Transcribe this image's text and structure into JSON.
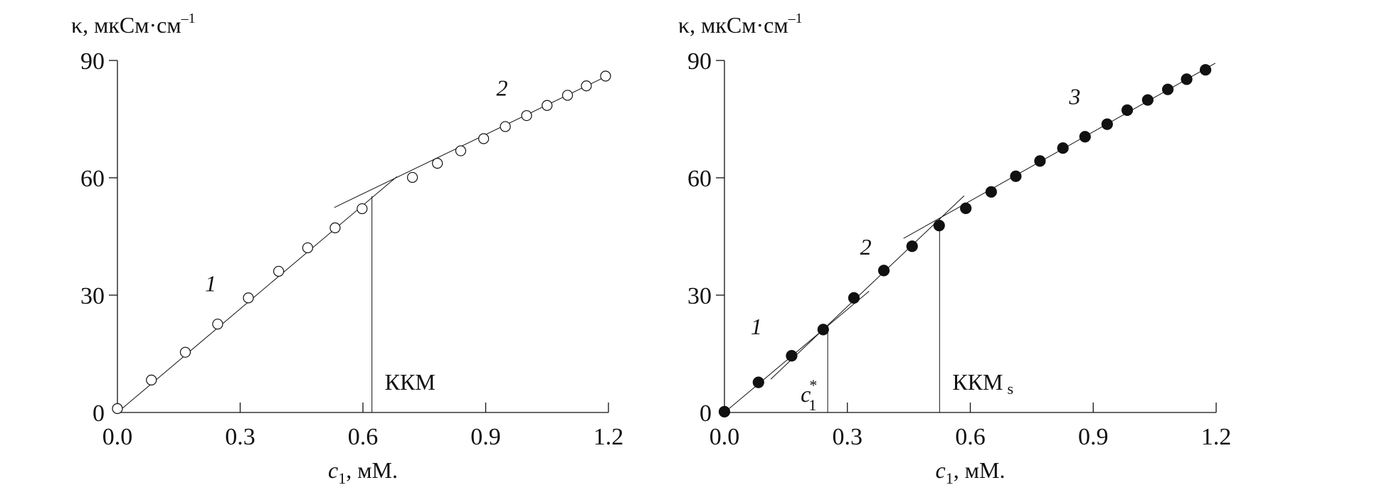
{
  "chart_data": [
    {
      "type": "scatter",
      "ylabel": "κ, мкСм·см",
      "ylabel_sup": "–1",
      "xlabel_var": "c",
      "xlabel_sub": "1",
      "xlabel_unit": ", мМ.",
      "xlim": [
        0,
        1.2
      ],
      "ylim": [
        0,
        90
      ],
      "xticks": [
        "0.0",
        "0.3",
        "0.6",
        "0.9",
        "1.2"
      ],
      "yticks": [
        "0",
        "30",
        "60",
        "90"
      ],
      "grid": false,
      "marker": "open-circle",
      "colors": {
        "ink": "#111111",
        "background": "#ffffff"
      },
      "points": [
        [
          0,
          1
        ],
        [
          0.083,
          8.3
        ],
        [
          0.166,
          15.4
        ],
        [
          0.245,
          22.6
        ],
        [
          0.32,
          29.3
        ],
        [
          0.394,
          36.1
        ],
        [
          0.465,
          42.1
        ],
        [
          0.532,
          47.2
        ],
        [
          0.598,
          52.1
        ],
        [
          0.721,
          60.1
        ],
        [
          0.782,
          63.7
        ],
        [
          0.839,
          66.9
        ],
        [
          0.895,
          70.0
        ],
        [
          0.948,
          73.1
        ],
        [
          1.0,
          75.9
        ],
        [
          1.05,
          78.5
        ],
        [
          1.1,
          81.1
        ],
        [
          1.146,
          83.5
        ],
        [
          1.193,
          86.0
        ]
      ],
      "fit_lines": [
        {
          "from": [
            0,
            0
          ],
          "to": [
            0.683,
            60.3
          ]
        },
        {
          "from": [
            0.53,
            52.4
          ],
          "to": [
            1.204,
            86.4
          ]
        }
      ],
      "markers": [
        {
          "x": 0.622,
          "y": 55.3,
          "label": "ККМ",
          "label_sub": ""
        }
      ],
      "segment_labels": [
        {
          "text": "1",
          "x": 0.228,
          "y": 31
        },
        {
          "text": "2",
          "x": 0.94,
          "y": 81
        }
      ]
    },
    {
      "type": "scatter",
      "ylabel": "κ, мкСм·см",
      "ylabel_sup": "–1",
      "xlabel_var": "c",
      "xlabel_sub": "1",
      "xlabel_unit": ", мМ.",
      "xlim": [
        0,
        1.2
      ],
      "ylim": [
        0,
        90
      ],
      "xticks": [
        "0.0",
        "0.3",
        "0.6",
        "0.9",
        "1.2"
      ],
      "yticks": [
        "0",
        "30",
        "60",
        "90"
      ],
      "grid": false,
      "marker": "filled-circle",
      "colors": {
        "ink": "#111111",
        "background": "#ffffff"
      },
      "points": [
        [
          0,
          0.2
        ],
        [
          0.083,
          7.7
        ],
        [
          0.164,
          14.5
        ],
        [
          0.241,
          21.2
        ],
        [
          0.316,
          29.3
        ],
        [
          0.389,
          36.3
        ],
        [
          0.458,
          42.5
        ],
        [
          0.524,
          47.8
        ],
        [
          0.589,
          52.2
        ],
        [
          0.651,
          56.4
        ],
        [
          0.711,
          60.4
        ],
        [
          0.77,
          64.3
        ],
        [
          0.826,
          67.6
        ],
        [
          0.88,
          70.5
        ],
        [
          0.934,
          73.7
        ],
        [
          0.983,
          77.3
        ],
        [
          1.033,
          79.9
        ],
        [
          1.082,
          82.6
        ],
        [
          1.128,
          85.2
        ],
        [
          1.174,
          87.6
        ]
      ],
      "fit_lines": [
        {
          "from": [
            0,
            0
          ],
          "to": [
            0.353,
            31.0
          ]
        },
        {
          "from": [
            0.113,
            8.5
          ],
          "to": [
            0.585,
            55.4
          ]
        },
        {
          "from": [
            0.437,
            44.5
          ],
          "to": [
            1.198,
            89.3
          ]
        }
      ],
      "markers": [
        {
          "x": 0.252,
          "y": 22.2,
          "label": "c",
          "label_sub": "1",
          "label_sup": "*"
        },
        {
          "x": 0.525,
          "y": 49.6,
          "label": "ККМ",
          "label_sub": "s"
        }
      ],
      "segment_labels": [
        {
          "text": "1",
          "x": 0.078,
          "y": 20
        },
        {
          "text": "2",
          "x": 0.345,
          "y": 40.4
        },
        {
          "text": "3",
          "x": 0.855,
          "y": 78.8
        }
      ]
    }
  ]
}
